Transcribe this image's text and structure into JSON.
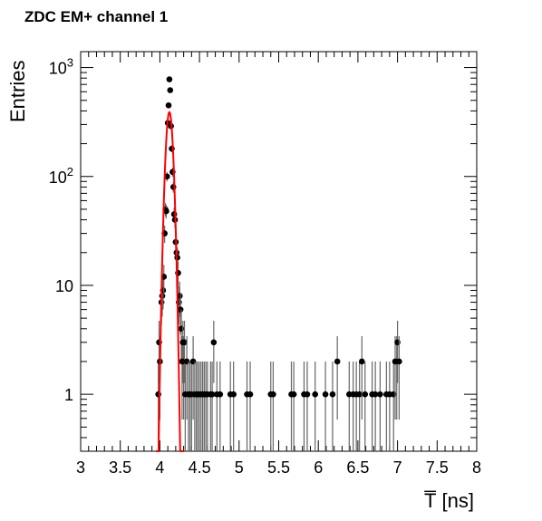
{
  "chart_data": {
    "type": "scatter",
    "title": "ZDC EM+ channel 1",
    "xlabel": "T̅ [ns]",
    "ylabel": "Entries",
    "xlim": [
      3,
      8
    ],
    "ylim": [
      0.3,
      1400
    ],
    "yscale": "log",
    "grid": false,
    "legend": "none",
    "x_tick_labels": [
      "3",
      "3.5",
      "4",
      "4.5",
      "5",
      "5.5",
      "6",
      "6.5",
      "7",
      "7.5",
      "8"
    ],
    "x_ticks": [
      3,
      3.5,
      4,
      4.5,
      5,
      5.5,
      6,
      6.5,
      7,
      7.5,
      8
    ],
    "y_tick_labels": [
      {
        "value": 1,
        "base": "1",
        "exp": ""
      },
      {
        "value": 10,
        "base": "10",
        "exp": ""
      },
      {
        "value": 100,
        "base": "10",
        "exp": "2"
      },
      {
        "value": 1000,
        "base": "10",
        "exp": "3"
      }
    ],
    "series": [
      {
        "type": "points_with_errors",
        "color": "#000000",
        "error_color": "#666666",
        "points": [
          {
            "x": 3.98,
            "y": 1
          },
          {
            "x": 3.99,
            "y": 3
          },
          {
            "x": 4.0,
            "y": 2
          },
          {
            "x": 4.02,
            "y": 7
          },
          {
            "x": 4.03,
            "y": 8
          },
          {
            "x": 4.04,
            "y": 9
          },
          {
            "x": 4.05,
            "y": 12
          },
          {
            "x": 4.06,
            "y": 30
          },
          {
            "x": 4.07,
            "y": 50
          },
          {
            "x": 4.08,
            "y": 48
          },
          {
            "x": 4.09,
            "y": 100
          },
          {
            "x": 4.1,
            "y": 310
          },
          {
            "x": 4.11,
            "y": 450
          },
          {
            "x": 4.12,
            "y": 780
          },
          {
            "x": 4.13,
            "y": 620
          },
          {
            "x": 4.14,
            "y": 290
          },
          {
            "x": 4.15,
            "y": 180
          },
          {
            "x": 4.16,
            "y": 110
          },
          {
            "x": 4.17,
            "y": 80
          },
          {
            "x": 4.18,
            "y": 45
          },
          {
            "x": 4.19,
            "y": 40
          },
          {
            "x": 4.2,
            "y": 25
          },
          {
            "x": 4.21,
            "y": 20
          },
          {
            "x": 4.22,
            "y": 18
          },
          {
            "x": 4.23,
            "y": 13
          },
          {
            "x": 4.24,
            "y": 7
          },
          {
            "x": 4.25,
            "y": 8
          },
          {
            "x": 4.26,
            "y": 6
          },
          {
            "x": 4.27,
            "y": 4
          },
          {
            "x": 4.28,
            "y": 2
          },
          {
            "x": 4.29,
            "y": 3
          },
          {
            "x": 4.3,
            "y": 2
          },
          {
            "x": 4.31,
            "y": 3
          },
          {
            "x": 4.32,
            "y": 1
          },
          {
            "x": 4.34,
            "y": 2
          },
          {
            "x": 4.36,
            "y": 1
          },
          {
            "x": 4.38,
            "y": 1
          },
          {
            "x": 4.4,
            "y": 1
          },
          {
            "x": 4.42,
            "y": 2
          },
          {
            "x": 4.44,
            "y": 1
          },
          {
            "x": 4.46,
            "y": 1
          },
          {
            "x": 4.48,
            "y": 1
          },
          {
            "x": 4.5,
            "y": 1
          },
          {
            "x": 4.52,
            "y": 1
          },
          {
            "x": 4.54,
            "y": 1
          },
          {
            "x": 4.56,
            "y": 1
          },
          {
            "x": 4.58,
            "y": 1
          },
          {
            "x": 4.6,
            "y": 1
          },
          {
            "x": 4.64,
            "y": 1
          },
          {
            "x": 4.66,
            "y": 1
          },
          {
            "x": 4.68,
            "y": 3
          },
          {
            "x": 4.72,
            "y": 1
          },
          {
            "x": 4.76,
            "y": 1
          },
          {
            "x": 4.89,
            "y": 1
          },
          {
            "x": 4.93,
            "y": 1
          },
          {
            "x": 5.1,
            "y": 1
          },
          {
            "x": 5.14,
            "y": 1
          },
          {
            "x": 5.4,
            "y": 1
          },
          {
            "x": 5.43,
            "y": 1
          },
          {
            "x": 5.66,
            "y": 1
          },
          {
            "x": 5.69,
            "y": 1
          },
          {
            "x": 5.82,
            "y": 1
          },
          {
            "x": 5.86,
            "y": 1
          },
          {
            "x": 5.96,
            "y": 1
          },
          {
            "x": 6.09,
            "y": 1
          },
          {
            "x": 6.18,
            "y": 1
          },
          {
            "x": 6.24,
            "y": 2
          },
          {
            "x": 6.39,
            "y": 1
          },
          {
            "x": 6.44,
            "y": 1
          },
          {
            "x": 6.48,
            "y": 1
          },
          {
            "x": 6.52,
            "y": 1
          },
          {
            "x": 6.55,
            "y": 2
          },
          {
            "x": 6.59,
            "y": 1
          },
          {
            "x": 6.68,
            "y": 1
          },
          {
            "x": 6.72,
            "y": 1
          },
          {
            "x": 6.78,
            "y": 1
          },
          {
            "x": 6.86,
            "y": 1
          },
          {
            "x": 6.9,
            "y": 1
          },
          {
            "x": 6.95,
            "y": 1
          },
          {
            "x": 6.97,
            "y": 2
          },
          {
            "x": 6.99,
            "y": 2
          },
          {
            "x": 7.0,
            "y": 3
          },
          {
            "x": 7.02,
            "y": 2
          }
        ]
      },
      {
        "type": "gaussian_fit",
        "color": "#ff0000",
        "amplitude": 390,
        "mean": 4.12,
        "sigma": 0.036,
        "x_range": [
          3.95,
          4.3
        ]
      }
    ]
  }
}
